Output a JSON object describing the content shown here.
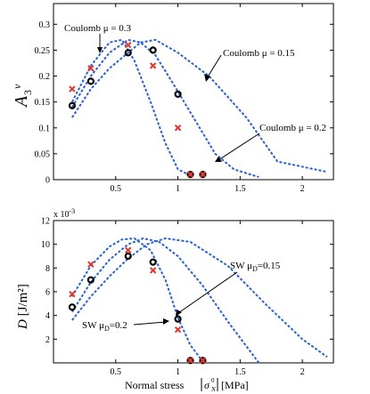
{
  "chart_data": [
    {
      "type": "line",
      "id": "A3",
      "xlim": [
        0,
        2.25
      ],
      "ylim": [
        0,
        0.34
      ],
      "xticks": [
        "0.5",
        "1",
        "1.5",
        "2"
      ],
      "yticks": [
        "0",
        "0.05",
        "0.1",
        "0.15",
        "0.2",
        "0.25",
        "0.3"
      ],
      "ylabel_base": "A",
      "ylabel_sub": "3",
      "ylabel_sup": "v",
      "series": [
        {
          "annotation": "Coulomb μ = 0.3",
          "x": [
            0.15,
            0.3,
            0.45,
            0.55,
            0.65,
            0.78,
            0.9,
            1.0,
            1.1
          ],
          "y": [
            0.15,
            0.22,
            0.265,
            0.27,
            0.23,
            0.15,
            0.07,
            0.02,
            0.008
          ]
        },
        {
          "annotation": "Coulomb μ = 0.2",
          "x": [
            0.15,
            0.3,
            0.45,
            0.6,
            0.7,
            0.82,
            0.95,
            1.1,
            1.3,
            1.45,
            1.65
          ],
          "y": [
            0.14,
            0.2,
            0.245,
            0.27,
            0.265,
            0.24,
            0.19,
            0.13,
            0.05,
            0.02,
            0.005
          ]
        },
        {
          "annotation": "Coulomb μ = 0.15",
          "x": [
            0.15,
            0.3,
            0.45,
            0.6,
            0.7,
            0.82,
            1.0,
            1.25,
            1.55,
            1.8,
            2.2
          ],
          "y": [
            0.12,
            0.175,
            0.215,
            0.245,
            0.265,
            0.27,
            0.245,
            0.2,
            0.12,
            0.035,
            0.015
          ]
        }
      ],
      "markers_circle": {
        "x": [
          0.15,
          0.3,
          0.6,
          0.8,
          1.0,
          1.1,
          1.2
        ],
        "y": [
          0.143,
          0.19,
          0.245,
          0.25,
          0.165,
          0.01,
          0.01
        ]
      },
      "markers_cross": {
        "x": [
          0.15,
          0.3,
          0.6,
          0.8,
          1.0,
          1.1,
          1.2
        ],
        "y": [
          0.175,
          0.215,
          0.26,
          0.22,
          0.1,
          0.01,
          0.01
        ]
      },
      "annotations": [
        {
          "text": "Coulomb μ = 0.3",
          "x": 0.0,
          "y": 0.315,
          "ax": 0.42,
          "ay": 0.27
        },
        {
          "text": "Coulomb μ = 0.15",
          "x": 1.2,
          "y": 0.27,
          "ax": 1.05,
          "ay": 0.22
        },
        {
          "text": "Coulomb μ = 0.2",
          "x": 1.38,
          "y": 0.105,
          "ax": 1.12,
          "ay": 0.06
        }
      ]
    },
    {
      "type": "line",
      "id": "D",
      "xlim": [
        0,
        2.25
      ],
      "ylim": [
        0,
        12
      ],
      "xticks": [
        "0.5",
        "1",
        "1.5",
        "2"
      ],
      "yticks": [
        "2",
        "4",
        "6",
        "8",
        "10",
        "12"
      ],
      "yscale_note": "x 10",
      "yscale_exp": "-3",
      "ylabel": "D [J/m²]",
      "xlabel": "Normal stress",
      "xlabel_unit": "[MPa]",
      "series": [
        {
          "annotation": "",
          "x": [
            0.15,
            0.3,
            0.45,
            0.55,
            0.65,
            0.78,
            0.9,
            1.0,
            1.1,
            1.2
          ],
          "y": [
            5.6,
            8.2,
            9.8,
            10.4,
            10.5,
            9.5,
            7.0,
            3.8,
            1.5,
            0.1
          ]
        },
        {
          "annotation": "SW μD=0.2",
          "x": [
            0.15,
            0.3,
            0.45,
            0.6,
            0.72,
            0.85,
            1.0,
            1.2,
            1.4,
            1.65
          ],
          "y": [
            4.3,
            6.8,
            8.7,
            10.0,
            10.5,
            10.2,
            9.0,
            6.5,
            3.5,
            0.0
          ]
        },
        {
          "annotation": "SW μD=0.15",
          "x": [
            0.15,
            0.3,
            0.45,
            0.6,
            0.75,
            0.9,
            1.1,
            1.4,
            1.7,
            2.0,
            2.2
          ],
          "y": [
            3.6,
            5.6,
            7.3,
            8.8,
            10.0,
            10.5,
            10.2,
            8.2,
            5.0,
            2.0,
            0.5
          ]
        }
      ],
      "markers_circle": {
        "x": [
          0.15,
          0.3,
          0.6,
          0.8,
          1.0,
          1.1,
          1.2
        ],
        "y": [
          4.7,
          7.0,
          9.0,
          8.5,
          3.7,
          0.2,
          0.2
        ]
      },
      "markers_cross": {
        "x": [
          0.15,
          0.3,
          0.6,
          0.8,
          1.0,
          1.1,
          1.2
        ],
        "y": [
          5.8,
          8.3,
          9.5,
          7.8,
          2.8,
          0.2,
          0.2
        ]
      },
      "annotations": [
        {
          "text": "SW μD=0.15",
          "x": 1.25,
          "y": 5.0,
          "ax": 1.01,
          "ay": 3.9
        },
        {
          "text": "SW μD=0.2",
          "x": 0.3,
          "y": 2.9,
          "ax": 0.98,
          "ay": 3.3
        }
      ]
    }
  ],
  "labels": {
    "top_ylabel_base": "A",
    "top_ylabel_sub": "3",
    "top_ylabel_sup": "v",
    "bottom_ylabel_D": "D",
    "bottom_ylabel_unit": " [J/m²]",
    "bottom_scale": "x 10",
    "bottom_scale_exp": "-3",
    "xlabel_text": "Normal stress",
    "xlabel_sigma": "σ",
    "xlabel_sigma_sub": "N",
    "xlabel_sigma_sup": "0",
    "xlabel_unit": "[MPa]",
    "ann_mu03": "Coulomb μ = 0.3",
    "ann_mu015": "Coulomb μ = 0.15",
    "ann_mu02": "Coulomb μ = 0.2",
    "ann_sw015_pre": "SW μ",
    "ann_sw015_sub": "D",
    "ann_sw015_post": "=0.15",
    "ann_sw02_pre": "SW μ",
    "ann_sw02_sub": "D",
    "ann_sw02_post": "=0.2"
  }
}
